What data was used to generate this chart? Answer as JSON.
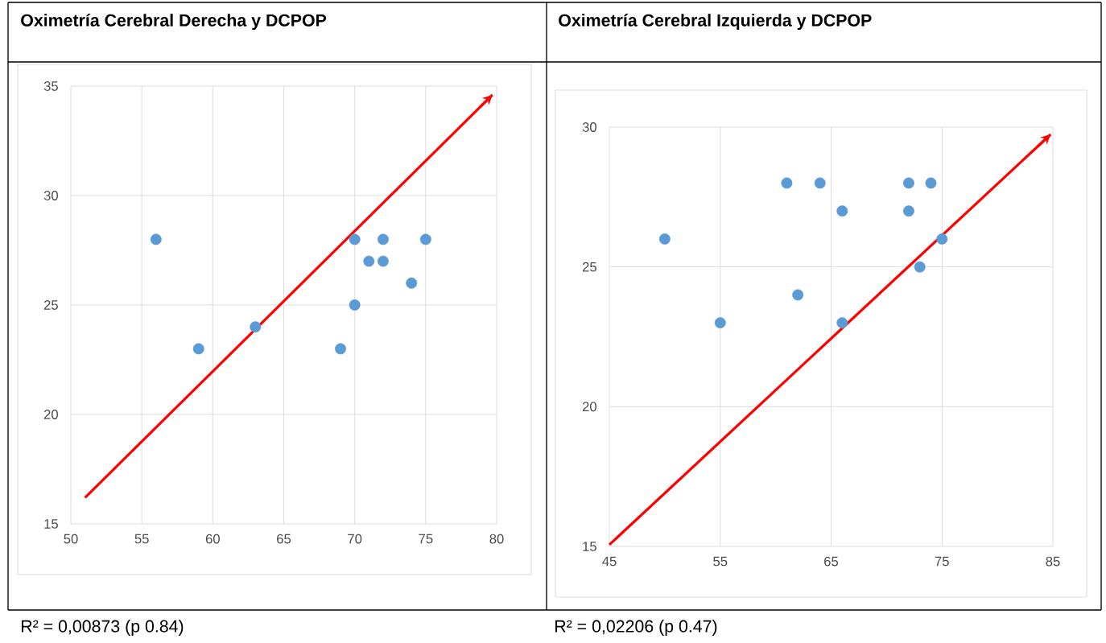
{
  "chart_data": [
    {
      "type": "scatter",
      "title": "Oximetría Cerebral Derecha  y DCPOP",
      "xlim": [
        50,
        80
      ],
      "ylim": [
        15,
        35
      ],
      "xticks": [
        50,
        55,
        60,
        65,
        70,
        75,
        80
      ],
      "yticks": [
        15,
        20,
        25,
        30,
        35
      ],
      "grid": true,
      "series": [
        {
          "color": "#5b9bd5",
          "marker": "circle",
          "x": [
            56,
            59,
            63,
            69,
            70,
            70,
            71,
            72,
            72,
            74,
            75
          ],
          "values": [
            28,
            23,
            24,
            23,
            28,
            25,
            27,
            28,
            27,
            26,
            28
          ]
        },
        {
          "type": "line",
          "color": "#ff0000",
          "marker": "none",
          "x": [
            51,
            79.7
          ],
          "values": [
            16.2,
            34.6
          ]
        }
      ],
      "annotations": [
        "R² = 0,00873  (p 0.84)"
      ]
    },
    {
      "type": "scatter",
      "title": "Oximetría Cerebral Izquierda y DCPOP",
      "xlim": [
        45,
        85
      ],
      "ylim": [
        15,
        30
      ],
      "xticks": [
        45,
        55,
        65,
        75,
        85
      ],
      "yticks": [
        15,
        20,
        25,
        30
      ],
      "grid": true,
      "series": [
        {
          "color": "#5b9bd5",
          "marker": "circle",
          "x": [
            50,
            55,
            61,
            62,
            64,
            66,
            66,
            72,
            72,
            73,
            74,
            75
          ],
          "values": [
            26,
            23,
            28,
            24,
            28,
            27,
            23,
            28,
            27,
            25,
            28,
            26
          ]
        },
        {
          "type": "line",
          "color": "#ff0000",
          "marker": "none",
          "x": [
            45,
            84.8
          ],
          "values": [
            15.06,
            29.74
          ]
        }
      ],
      "annotations": [
        "R² = 0,02206 (p 0.47)"
      ]
    }
  ]
}
